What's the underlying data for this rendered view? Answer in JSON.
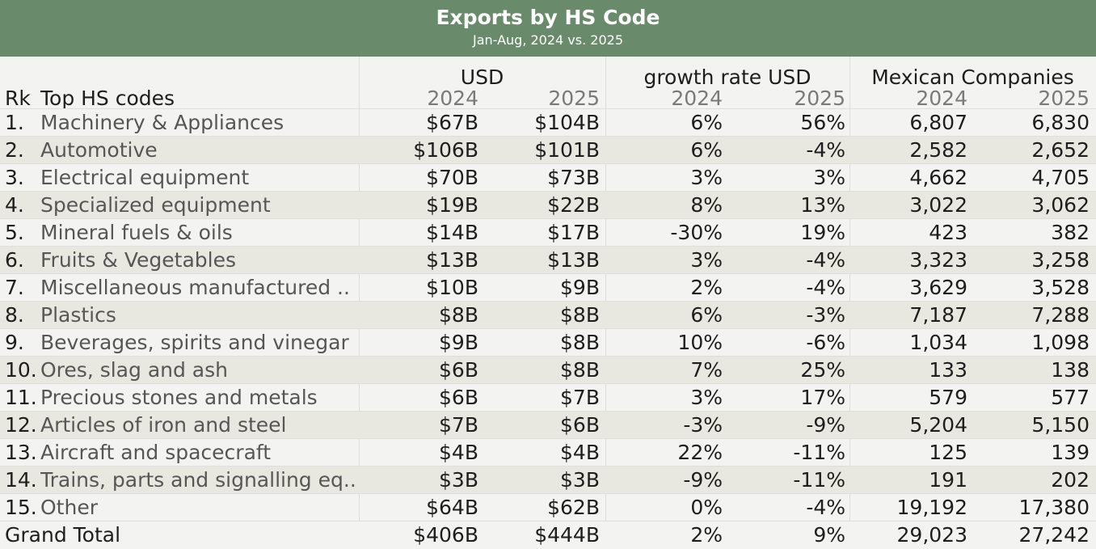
{
  "title": "Exports by HS Code",
  "subtitle": "Jan-Aug, 2024 vs. 2025",
  "headers": {
    "rank": "Rk",
    "name": "Top HS codes",
    "group_usd": "USD",
    "group_growth": "growth rate USD",
    "group_companies": "Mexican Companies",
    "year_a": "2024",
    "year_b": "2025"
  },
  "colors": {
    "banner": "#6a8a6c",
    "row_alt": "#e9e8e0",
    "row": "#f3f3f1"
  },
  "chart_data": {
    "type": "table",
    "title": "Exports by HS Code",
    "subtitle": "Jan-Aug, 2024 vs. 2025",
    "columns": [
      "Rk",
      "Top HS codes",
      "USD 2024",
      "USD 2025",
      "growth rate USD 2024",
      "growth rate USD 2025",
      "Mexican Companies 2024",
      "Mexican Companies 2025"
    ],
    "rows": [
      {
        "rank": "1.",
        "name": "Machinery & Appliances",
        "usd_2024": "$67B",
        "usd_2025": "$104B",
        "growth_2024": "6%",
        "growth_2025": "56%",
        "companies_2024": "6,807",
        "companies_2025": "6,830"
      },
      {
        "rank": "2.",
        "name": "Automotive",
        "usd_2024": "$106B",
        "usd_2025": "$101B",
        "growth_2024": "6%",
        "growth_2025": "-4%",
        "companies_2024": "2,582",
        "companies_2025": "2,652"
      },
      {
        "rank": "3.",
        "name": "Electrical equipment",
        "usd_2024": "$70B",
        "usd_2025": "$73B",
        "growth_2024": "3%",
        "growth_2025": "3%",
        "companies_2024": "4,662",
        "companies_2025": "4,705"
      },
      {
        "rank": "4.",
        "name": "Specialized equipment",
        "usd_2024": "$19B",
        "usd_2025": "$22B",
        "growth_2024": "8%",
        "growth_2025": "13%",
        "companies_2024": "3,022",
        "companies_2025": "3,062"
      },
      {
        "rank": "5.",
        "name": "Mineral fuels & oils",
        "usd_2024": "$14B",
        "usd_2025": "$17B",
        "growth_2024": "-30%",
        "growth_2025": "19%",
        "companies_2024": "423",
        "companies_2025": "382"
      },
      {
        "rank": "6.",
        "name": "Fruits & Vegetables",
        "usd_2024": "$13B",
        "usd_2025": "$13B",
        "growth_2024": "3%",
        "growth_2025": "-4%",
        "companies_2024": "3,323",
        "companies_2025": "3,258"
      },
      {
        "rank": "7.",
        "name": "Miscellaneous manufactured ..",
        "usd_2024": "$10B",
        "usd_2025": "$9B",
        "growth_2024": "2%",
        "growth_2025": "-4%",
        "companies_2024": "3,629",
        "companies_2025": "3,528"
      },
      {
        "rank": "8.",
        "name": "Plastics",
        "usd_2024": "$8B",
        "usd_2025": "$8B",
        "growth_2024": "6%",
        "growth_2025": "-3%",
        "companies_2024": "7,187",
        "companies_2025": "7,288"
      },
      {
        "rank": "9.",
        "name": "Beverages, spirits and vinegar",
        "usd_2024": "$9B",
        "usd_2025": "$8B",
        "growth_2024": "10%",
        "growth_2025": "-6%",
        "companies_2024": "1,034",
        "companies_2025": "1,098"
      },
      {
        "rank": "10.",
        "name": "Ores, slag and ash",
        "usd_2024": "$6B",
        "usd_2025": "$8B",
        "growth_2024": "7%",
        "growth_2025": "25%",
        "companies_2024": "133",
        "companies_2025": "138"
      },
      {
        "rank": "11.",
        "name": "Precious stones and metals",
        "usd_2024": "$6B",
        "usd_2025": "$7B",
        "growth_2024": "3%",
        "growth_2025": "17%",
        "companies_2024": "579",
        "companies_2025": "577"
      },
      {
        "rank": "12.",
        "name": "Articles of iron and steel",
        "usd_2024": "$7B",
        "usd_2025": "$6B",
        "growth_2024": "-3%",
        "growth_2025": "-9%",
        "companies_2024": "5,204",
        "companies_2025": "5,150"
      },
      {
        "rank": "13.",
        "name": "Aircraft and spacecraft",
        "usd_2024": "$4B",
        "usd_2025": "$4B",
        "growth_2024": "22%",
        "growth_2025": "-11%",
        "companies_2024": "125",
        "companies_2025": "139"
      },
      {
        "rank": "14.",
        "name": "Trains, parts and signalling eq..",
        "usd_2024": "$3B",
        "usd_2025": "$3B",
        "growth_2024": "-9%",
        "growth_2025": "-11%",
        "companies_2024": "191",
        "companies_2025": "202"
      },
      {
        "rank": "15.",
        "name": "Other",
        "usd_2024": "$64B",
        "usd_2025": "$62B",
        "growth_2024": "0%",
        "growth_2025": "-4%",
        "companies_2024": "19,192",
        "companies_2025": "17,380"
      }
    ],
    "total": {
      "name": "Grand Total",
      "usd_2024": "$406B",
      "usd_2025": "$444B",
      "growth_2024": "2%",
      "growth_2025": "9%",
      "companies_2024": "29,023",
      "companies_2025": "27,242"
    }
  }
}
